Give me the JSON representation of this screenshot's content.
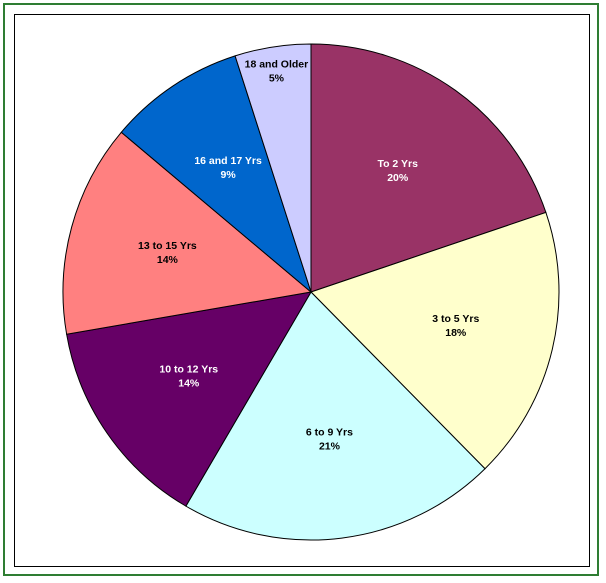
{
  "chart_data": {
    "type": "pie",
    "title": "",
    "slices": [
      {
        "label": "To 2 Yrs",
        "percent_label": "20%",
        "value": 20,
        "color": "#993366",
        "text_color": "#ffffff"
      },
      {
        "label": "3 to 5 Yrs",
        "percent_label": "18%",
        "value": 18,
        "color": "#ffffcc",
        "text_color": "#000000"
      },
      {
        "label": "6 to 9 Yrs",
        "percent_label": "21%",
        "value": 21,
        "color": "#ccffff",
        "text_color": "#000000"
      },
      {
        "label": "10 to 12 Yrs",
        "percent_label": "14%",
        "value": 14,
        "color": "#660066",
        "text_color": "#ffffff"
      },
      {
        "label": "13 to 15 Yrs",
        "percent_label": "14%",
        "value": 14,
        "color": "#ff8080",
        "text_color": "#000000"
      },
      {
        "label": "16 and 17 Yrs",
        "percent_label": "9%",
        "value": 9,
        "color": "#0066cc",
        "text_color": "#ffffff"
      },
      {
        "label": "18 and Older",
        "percent_label": "5%",
        "value": 5,
        "color": "#ccccff",
        "text_color": "#000000"
      }
    ],
    "start_angle_deg": 0,
    "direction": "clockwise",
    "slice_border_color": "#000000",
    "frame_color": "#2e7d32"
  }
}
